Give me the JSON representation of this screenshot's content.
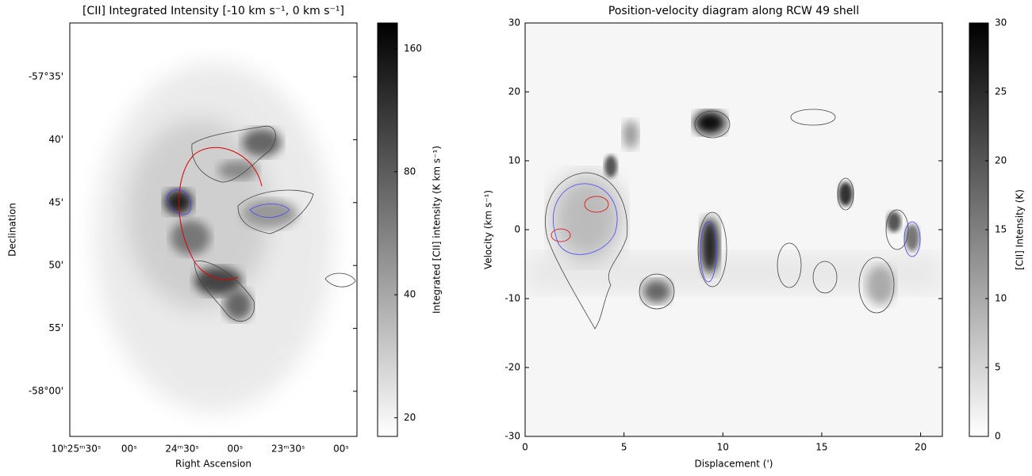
{
  "chart_data": [
    {
      "type": "image",
      "title": "[CII] Integrated Intensity [-10  km s⁻¹, 0  km s⁻¹]",
      "xlabel": "Right Ascension",
      "ylabel": "Declination",
      "xticklabels": [
        "10ʰ25ᵐ30ˢ",
        "00ˢ",
        "24ᵐ30ˢ",
        "00ˢ",
        "23ᵐ30ˢ",
        "00ˢ"
      ],
      "yticklabels": [
        "-57°35'",
        "40'",
        "45'",
        "50'",
        "55'",
        "-58°00'"
      ],
      "colorbar": {
        "label": "Integrated [CII] intensity (K km s⁻¹)",
        "lim": [
          18,
          185
        ],
        "ticks": [
          20,
          40,
          80,
          160
        ],
        "scale": "log"
      }
    },
    {
      "type": "image",
      "title": "Position-velocity diagram along RCW 49 shell",
      "xlabel": "Displacement (')",
      "ylabel": "Velocity (km s⁻¹)",
      "xlim": [
        0,
        21.1
      ],
      "xticks": [
        0,
        5,
        10,
        15,
        20
      ],
      "ylim": [
        -30,
        30
      ],
      "yticks": [
        -30,
        -20,
        -10,
        0,
        10,
        20,
        30
      ],
      "colorbar": {
        "label": "[CII] Intensity (K)",
        "lim": [
          0,
          30
        ],
        "ticks": [
          0,
          5,
          10,
          15,
          20,
          25,
          30
        ],
        "scale": "linear"
      }
    }
  ]
}
